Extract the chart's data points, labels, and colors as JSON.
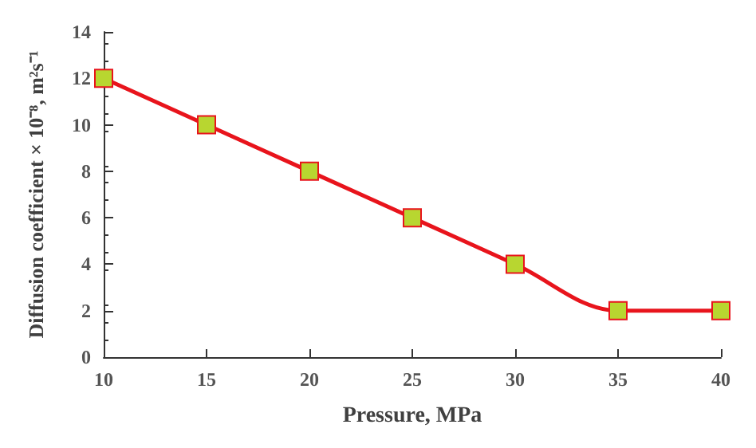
{
  "chart_data": {
    "type": "line",
    "xlabel": "Pressure, MPa",
    "ylabel": "Diffusion coefficient × 10⁻⁸, m²s⁻¹",
    "x": [
      10,
      15,
      20,
      25,
      30,
      35,
      40
    ],
    "series": [
      {
        "color": "#e8141c",
        "values": [
          12,
          10,
          8,
          6,
          4,
          2,
          2
        ]
      }
    ],
    "xlim": [
      10,
      40
    ],
    "xticks": [
      10,
      15,
      20,
      25,
      30,
      35,
      40
    ],
    "ylim": [
      0,
      14
    ],
    "yticks": [
      0,
      2,
      4,
      6,
      8,
      10,
      12,
      14
    ],
    "grid": false,
    "marker": "square",
    "line_style": "solid"
  }
}
